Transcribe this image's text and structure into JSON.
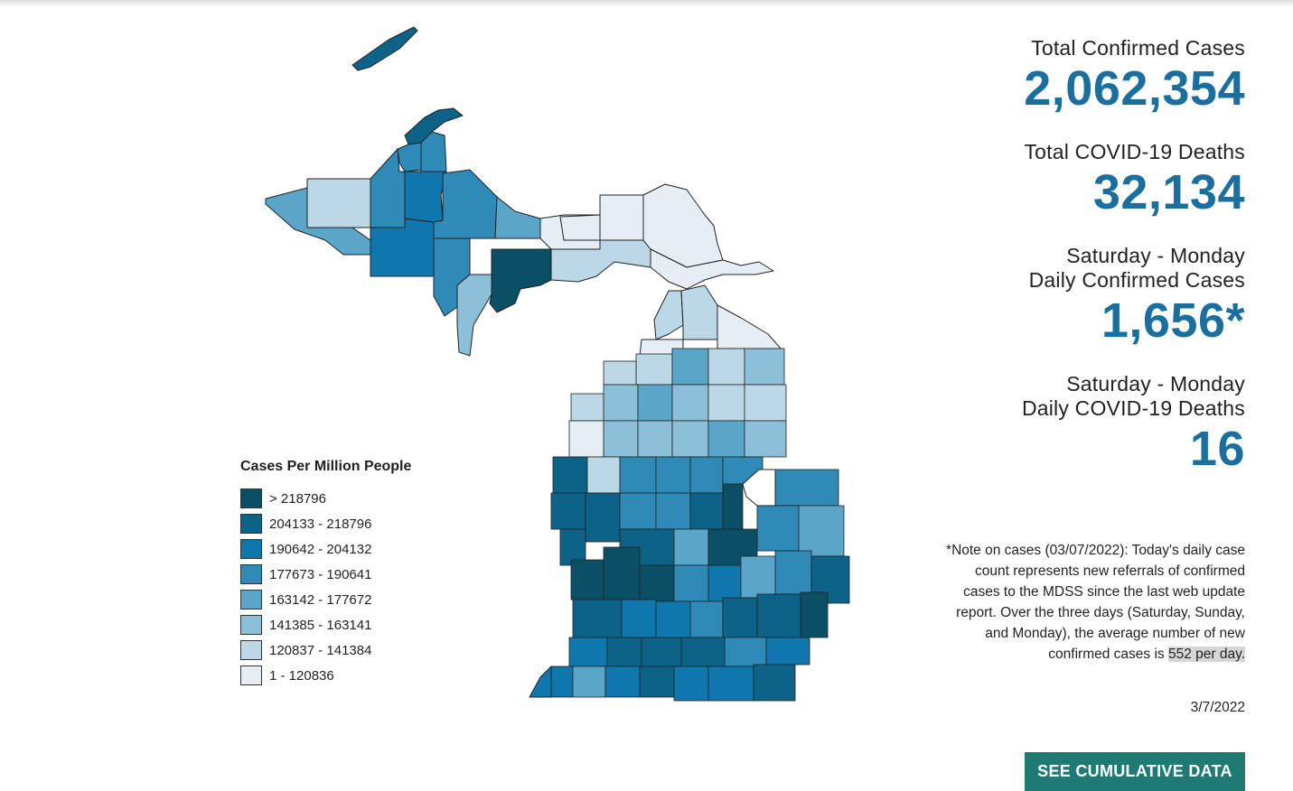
{
  "map": {
    "region": "Michigan",
    "legend": {
      "title": "Cases Per Million People",
      "items": [
        {
          "label": "> 218796",
          "color": "#0b4f66"
        },
        {
          "label": "204133 - 218796",
          "color": "#0d6288"
        },
        {
          "label": "190642 - 204132",
          "color": "#0f77ad"
        },
        {
          "label": "177673 - 190641",
          "color": "#2f8ab8"
        },
        {
          "label": "163142 - 177672",
          "color": "#5aa6c9"
        },
        {
          "label": "141385 - 163141",
          "color": "#8cbfd8"
        },
        {
          "label": "120837 - 141384",
          "color": "#bcd7e6"
        },
        {
          "label": "1 - 120836",
          "color": "#e6eef5"
        }
      ]
    }
  },
  "stats": {
    "total_cases_label": "Total Confirmed Cases",
    "total_cases_value": "2,062,354",
    "total_deaths_label": "Total COVID-19 Deaths",
    "total_deaths_value": "32,134",
    "daily_cases_label_line1": "Saturday - Monday",
    "daily_cases_label_line2": "Daily Confirmed Cases",
    "daily_cases_value": "1,656*",
    "daily_deaths_label_line1": "Saturday - Monday",
    "daily_deaths_label_line2": "Daily COVID-19 Deaths",
    "daily_deaths_value": "16"
  },
  "note": {
    "text": "*Note on cases (03/07/2022): Today's daily case count represents new referrals of confirmed cases to the MDSS since the last web update report.  Over the three days (Saturday, Sunday, and Monday), the average number of new confirmed cases is",
    "highlight": "552 per day."
  },
  "date": "3/7/2022",
  "button": {
    "label": "SEE CUMULATIVE DATA"
  },
  "colors": {
    "accent": "#1a6f9e",
    "button": "#1f7a74"
  }
}
